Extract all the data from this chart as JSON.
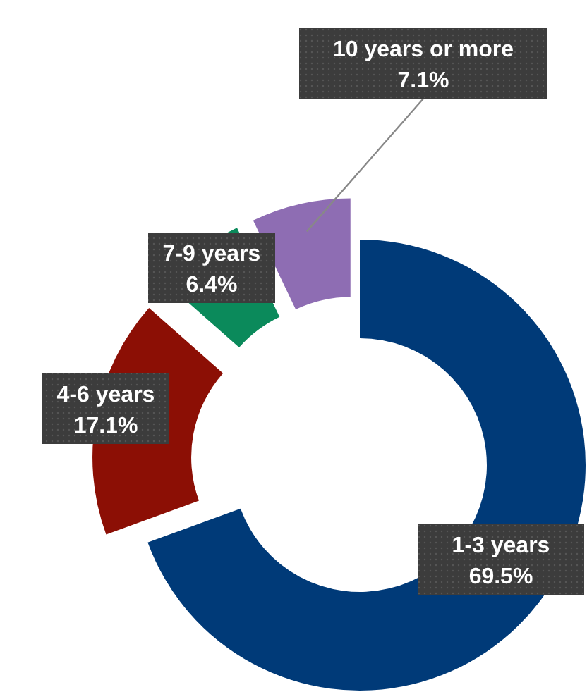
{
  "chart_data": {
    "type": "donut",
    "categories": [
      "1-3 years",
      "4-6 years",
      "7-9 years",
      "10 years or more"
    ],
    "values": [
      69.5,
      17.1,
      6.4,
      7.1
    ],
    "colors": [
      "#003a78",
      "#8c0f05",
      "#0b8a5b",
      "#8e6db3"
    ],
    "value_labels": [
      "69.5%",
      "17.1%",
      "6.4%",
      "7.1%"
    ]
  }
}
